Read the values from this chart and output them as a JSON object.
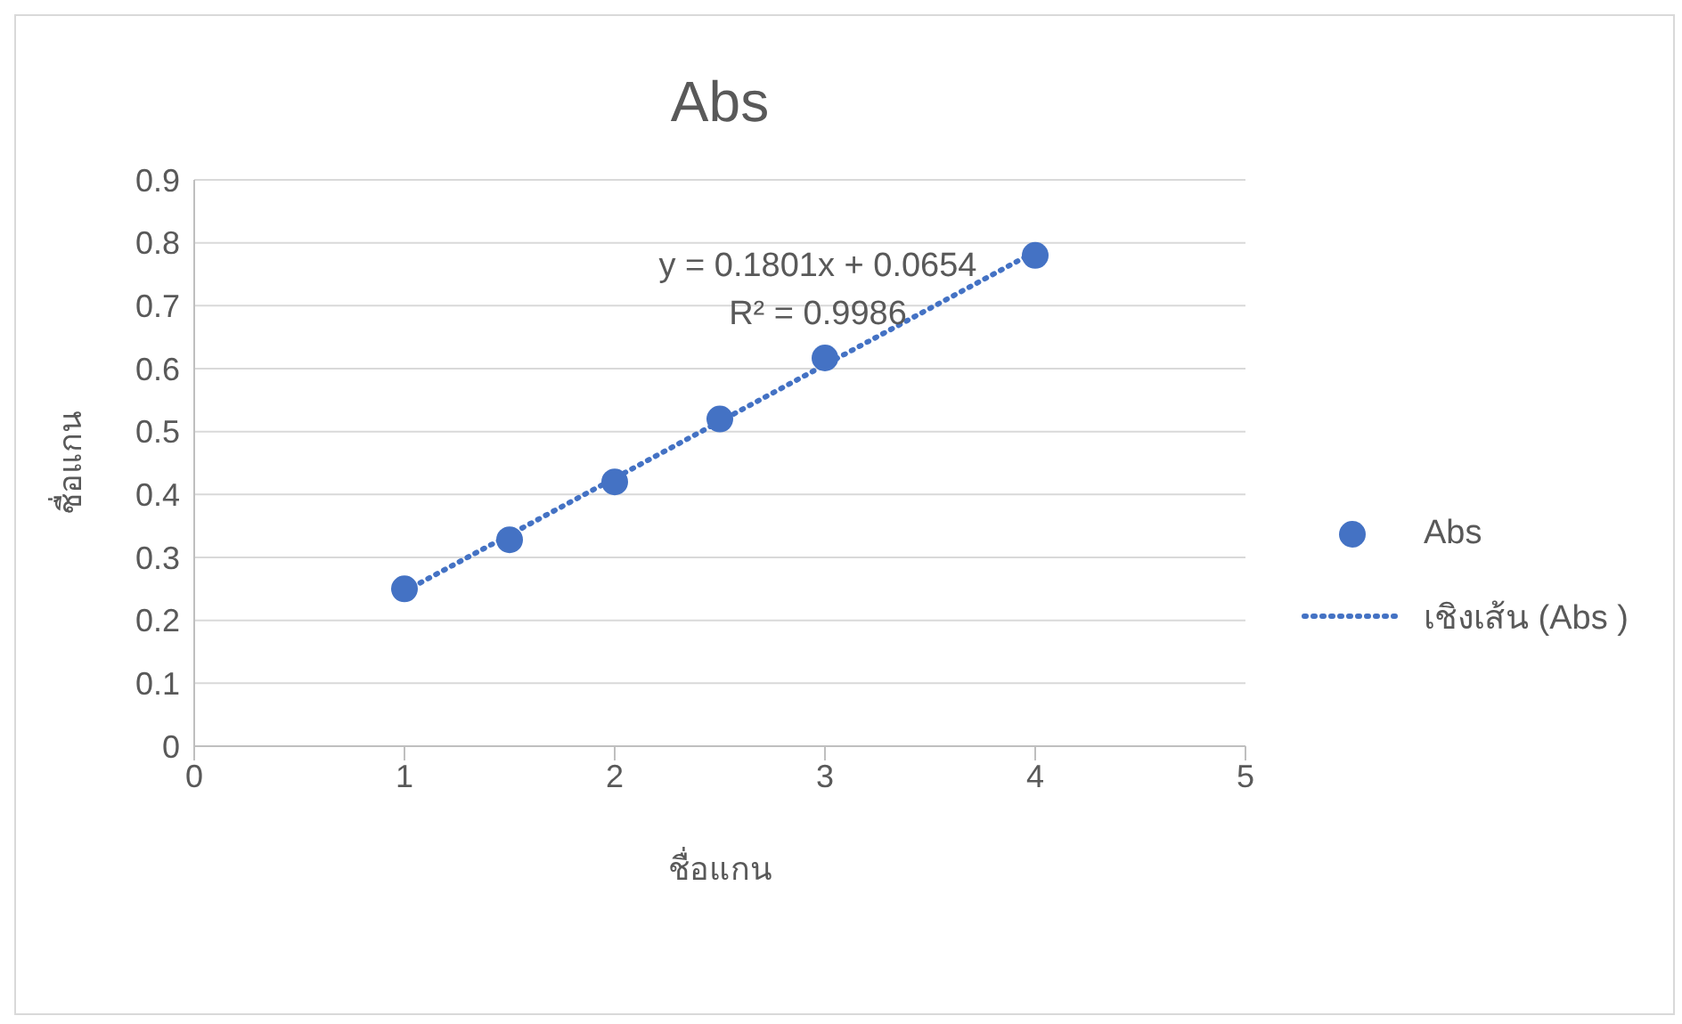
{
  "chart_data": {
    "type": "scatter",
    "title": "Abs",
    "xlabel": "ชื่อแกน",
    "ylabel": "ชื่อแกน",
    "x": [
      1,
      1.5,
      2,
      2.5,
      3,
      4
    ],
    "series": [
      {
        "name": "Abs",
        "color": "#4472c4",
        "marker": "circle",
        "values": [
          0.25,
          0.328,
          0.42,
          0.52,
          0.617,
          0.78
        ]
      },
      {
        "name": "เชิงเส้น (Abs )",
        "color": "#4472c4",
        "type": "line",
        "line_style": "dotted",
        "marker": "none",
        "x": [
          1,
          4
        ],
        "values": [
          0.246,
          0.786
        ]
      }
    ],
    "annotations": [
      "y = 0.1801x + 0.0654",
      "R² = 0.9986"
    ],
    "xlim": [
      0,
      5
    ],
    "xticks": [
      0,
      1,
      2,
      3,
      4,
      5
    ],
    "ylim": [
      0,
      0.9
    ],
    "yticks": [
      0,
      0.1,
      0.2,
      0.3,
      0.4,
      0.5,
      0.6,
      0.7,
      0.8,
      0.9
    ],
    "grid": "y",
    "legend": "right"
  }
}
